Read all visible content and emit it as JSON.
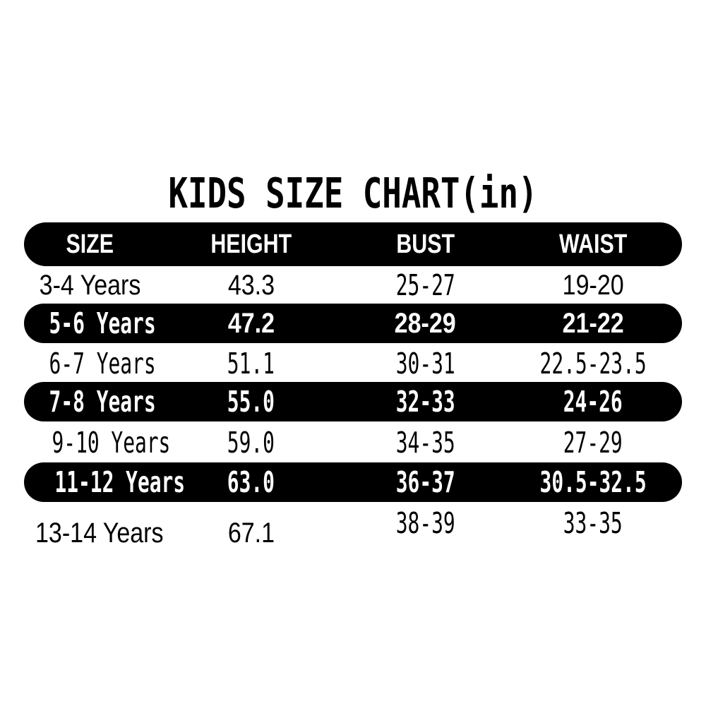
{
  "title": "KIDS SIZE CHART(in)",
  "colors": {
    "background": "#ffffff",
    "bar": "#000000",
    "bar_text": "#ffffff",
    "text": "#000000"
  },
  "chart_data": {
    "type": "table",
    "title": "KIDS SIZE CHART(in)",
    "columns": [
      "SIZE",
      "HEIGHT",
      "BUST",
      "WAIST"
    ],
    "rows": [
      {
        "size": "3-4 Years",
        "height": "43.3",
        "bust": "25-27",
        "waist": "19-20",
        "highlighted": false
      },
      {
        "size": "5-6 Years",
        "height": "47.2",
        "bust": "28-29",
        "waist": "21-22",
        "highlighted": true
      },
      {
        "size": "6-7 Years",
        "height": "51.1",
        "bust": "30-31",
        "waist": "22.5-23.5",
        "highlighted": false
      },
      {
        "size": "7-8 Years",
        "height": "55.0",
        "bust": "32-33",
        "waist": "24-26",
        "highlighted": true
      },
      {
        "size": "9-10 Years",
        "height": "59.0",
        "bust": "34-35",
        "waist": "27-29",
        "highlighted": false
      },
      {
        "size": "11-12 Years",
        "height": "63.0",
        "bust": "36-37",
        "waist": "30.5-32.5",
        "highlighted": true
      },
      {
        "size": "13-14 Years",
        "height": "67.1",
        "bust": "38-39",
        "waist": "33-35",
        "highlighted": false
      }
    ],
    "layout": {
      "highlight_style": "alternating black pill-shaped rows",
      "legend": "none",
      "grid": "off"
    }
  }
}
